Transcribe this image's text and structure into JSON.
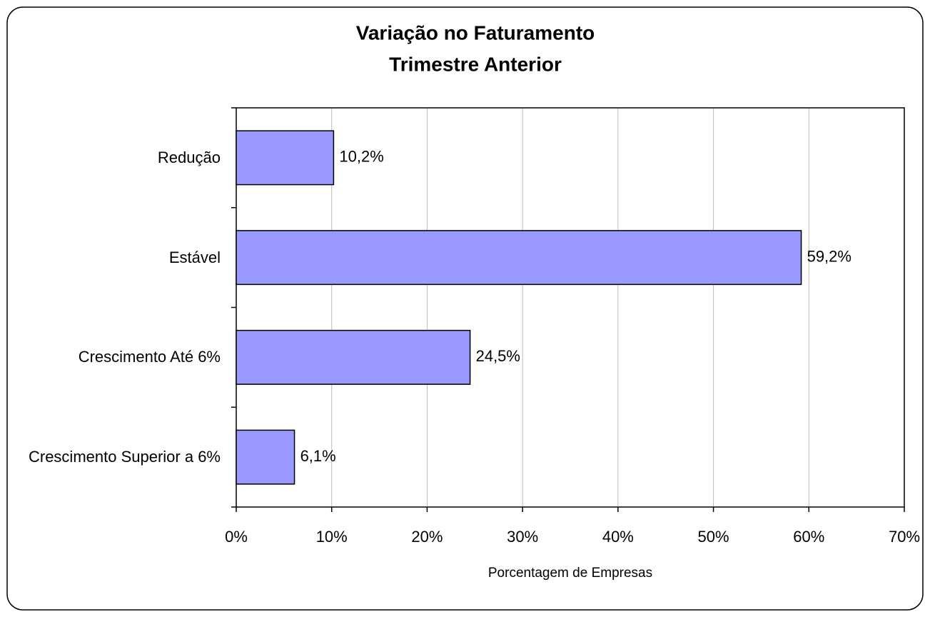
{
  "chart_data": {
    "type": "bar",
    "orientation": "horizontal",
    "title": [
      "Variação no Faturamento",
      "Trimestre Anterior"
    ],
    "categories": [
      "Redução",
      "Estável",
      "Crescimento Até 6%",
      "Crescimento Superior a 6%"
    ],
    "values": [
      10.2,
      59.2,
      24.5,
      6.1
    ],
    "value_labels": [
      "10,2%",
      "59,2%",
      "24,5%",
      "6,1%"
    ],
    "color": "#9999ff",
    "xlabel": "Porcentagem de Empresas",
    "xlim": [
      0,
      70
    ],
    "xticks": [
      {
        "value": 0,
        "label": "0%"
      },
      {
        "value": 10,
        "label": "10%"
      },
      {
        "value": 20,
        "label": "20%"
      },
      {
        "value": 30,
        "label": "30%"
      },
      {
        "value": 40,
        "label": "40%"
      },
      {
        "value": 50,
        "label": "50%"
      },
      {
        "value": 60,
        "label": "60%"
      },
      {
        "value": 70,
        "label": "70%"
      }
    ],
    "grid": true
  }
}
